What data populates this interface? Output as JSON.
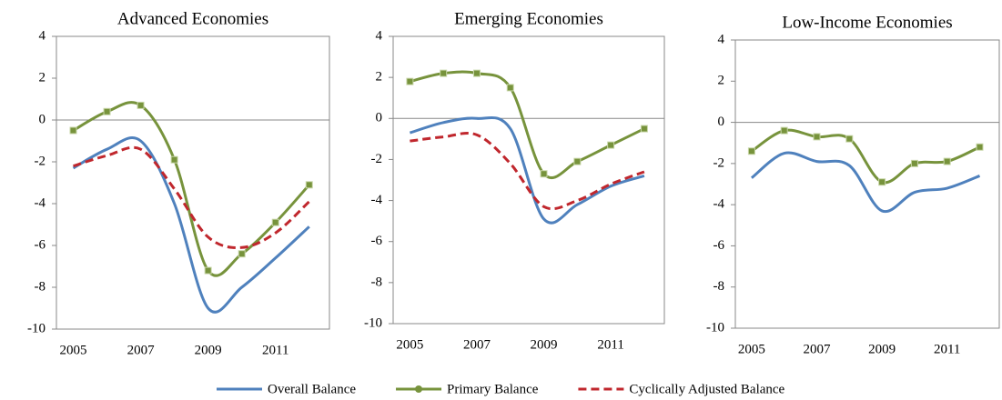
{
  "chart_data": [
    {
      "type": "line",
      "title": "Advanced Economies",
      "x": [
        2005,
        2006,
        2007,
        2008,
        2009,
        2010,
        2011,
        2012
      ],
      "xlim": [
        2004.5,
        2012.6
      ],
      "xticks": [
        2005,
        2007,
        2009,
        2011
      ],
      "ylim": [
        -10,
        4
      ],
      "yticks": [
        -10,
        -8,
        -6,
        -4,
        -2,
        0,
        2,
        4
      ],
      "series": [
        {
          "name": "Overall Balance",
          "color": "#4f81bd",
          "values": [
            -2.3,
            -1.4,
            -1.0,
            -4.0,
            -9.0,
            -8.0,
            -6.6,
            -5.1
          ]
        },
        {
          "name": "Primary Balance",
          "color": "#77933c",
          "marker": "square",
          "values": [
            -0.5,
            0.4,
            0.7,
            -1.9,
            -7.2,
            -6.4,
            -4.9,
            -3.1
          ]
        },
        {
          "name": "Cyclically Adjusted Balance",
          "color": "#c0272d",
          "dash": true,
          "values": [
            -2.2,
            -1.7,
            -1.4,
            -3.3,
            -5.6,
            -6.1,
            -5.4,
            -3.9
          ]
        }
      ]
    },
    {
      "type": "line",
      "title": "Emerging Economies",
      "x": [
        2005,
        2006,
        2007,
        2008,
        2009,
        2010,
        2011,
        2012
      ],
      "xlim": [
        2004.5,
        2012.6
      ],
      "xticks": [
        2005,
        2007,
        2009,
        2011
      ],
      "ylim": [
        -10,
        4
      ],
      "yticks": [
        -10,
        -8,
        -6,
        -4,
        -2,
        0,
        2,
        4
      ],
      "series": [
        {
          "color": "#4f81bd",
          "values": [
            -0.7,
            -0.2,
            0.0,
            -0.5,
            -4.9,
            -4.2,
            -3.3,
            -2.8
          ]
        },
        {
          "color": "#77933c",
          "marker": "square",
          "values": [
            1.8,
            2.2,
            2.2,
            1.5,
            -2.7,
            -2.1,
            -1.3,
            -0.5
          ]
        },
        {
          "color": "#c0272d",
          "dash": true,
          "values": [
            -1.1,
            -0.9,
            -0.8,
            -2.2,
            -4.3,
            -4.0,
            -3.2,
            -2.6
          ]
        }
      ]
    },
    {
      "type": "line",
      "title": "Low-Income Economies",
      "x": [
        2005,
        2006,
        2007,
        2008,
        2009,
        2010,
        2011,
        2012
      ],
      "xlim": [
        2004.5,
        2012.6
      ],
      "xticks": [
        2005,
        2007,
        2009,
        2011
      ],
      "ylim": [
        -10,
        4
      ],
      "yticks": [
        -10,
        -8,
        -6,
        -4,
        -2,
        0,
        2,
        4
      ],
      "series": [
        {
          "color": "#4f81bd",
          "values": [
            -2.7,
            -1.5,
            -1.9,
            -2.1,
            -4.3,
            -3.4,
            -3.2,
            -2.6
          ]
        },
        {
          "color": "#77933c",
          "marker": "square",
          "values": [
            -1.4,
            -0.4,
            -0.7,
            -0.8,
            -2.9,
            -2.0,
            -1.9,
            -1.2
          ]
        }
      ]
    }
  ]
}
